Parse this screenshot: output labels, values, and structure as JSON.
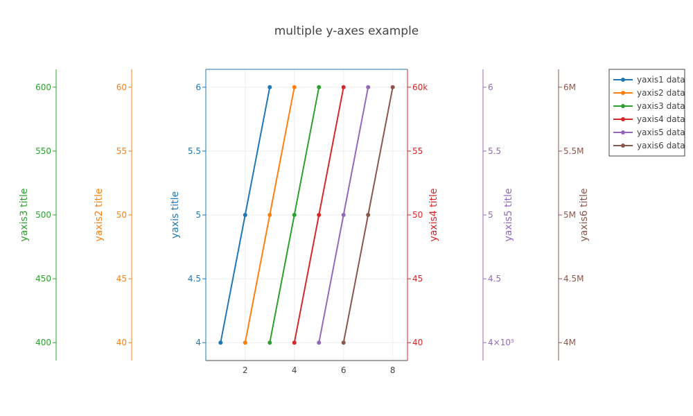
{
  "chart_data": {
    "type": "line",
    "title": "multiple y-axes example",
    "xaxis": {
      "range": [
        0.4,
        8.6
      ],
      "ticks": [
        2,
        4,
        6,
        8
      ],
      "tick_labels": [
        "2",
        "4",
        "6",
        "8"
      ],
      "grid": true
    },
    "yaxes": [
      {
        "id": "y1",
        "title": "yaxis title",
        "color": "#1f77b4",
        "range": [
          3.86,
          6.14
        ],
        "ticks": [
          4,
          4.5,
          5,
          5.5,
          6
        ],
        "tick_labels": [
          "4",
          "4.5",
          "5",
          "5.5",
          "6"
        ],
        "side": "left",
        "grid": true
      },
      {
        "id": "y2",
        "title": "yaxis2 title",
        "color": "#ff7f0e",
        "range": [
          38.6,
          61.4
        ],
        "ticks": [
          40,
          45,
          50,
          55,
          60
        ],
        "tick_labels": [
          "40",
          "45",
          "50",
          "55",
          "60"
        ],
        "side": "left"
      },
      {
        "id": "y3",
        "title": "yaxis3 title",
        "color": "#2ca02c",
        "range": [
          386,
          614
        ],
        "ticks": [
          400,
          450,
          500,
          550,
          600
        ],
        "tick_labels": [
          "400",
          "450",
          "500",
          "550",
          "600"
        ],
        "side": "left"
      },
      {
        "id": "y4",
        "title": "yaxis4 title",
        "color": "#d62728",
        "range": [
          38600,
          61400
        ],
        "ticks": [
          40000,
          45000,
          50000,
          55000,
          60000
        ],
        "tick_labels": [
          "40",
          "45",
          "50",
          "55",
          "60k"
        ],
        "side": "right"
      },
      {
        "id": "y5",
        "title": "yaxis5 title",
        "color": "#9467bd",
        "range": [
          386000,
          614000
        ],
        "ticks": [
          400000,
          450000,
          500000,
          550000,
          600000
        ],
        "tick_labels": [
          "4×10⁵",
          "4.5",
          "5",
          "5.5",
          "6"
        ],
        "side": "right"
      },
      {
        "id": "y6",
        "title": "yaxis6 title",
        "color": "#8c564b",
        "range": [
          3860000,
          6140000
        ],
        "ticks": [
          4000000,
          4500000,
          5000000,
          5500000,
          6000000
        ],
        "tick_labels": [
          "4M",
          "4.5M",
          "5M",
          "5.5M",
          "6M"
        ],
        "side": "right"
      }
    ],
    "series": [
      {
        "name": "yaxis1 data",
        "yaxis": "y1",
        "color": "#1f77b4",
        "x": [
          1,
          2,
          3
        ],
        "y": [
          4,
          5,
          6
        ]
      },
      {
        "name": "yaxis2 data",
        "yaxis": "y2",
        "color": "#ff7f0e",
        "x": [
          2,
          3,
          4
        ],
        "y": [
          40,
          50,
          60
        ]
      },
      {
        "name": "yaxis3 data",
        "yaxis": "y3",
        "color": "#2ca02c",
        "x": [
          3,
          4,
          5
        ],
        "y": [
          400,
          500,
          600
        ]
      },
      {
        "name": "yaxis4 data",
        "yaxis": "y4",
        "color": "#d62728",
        "x": [
          4,
          5,
          6
        ],
        "y": [
          40000,
          50000,
          60000
        ]
      },
      {
        "name": "yaxis5 data",
        "yaxis": "y5",
        "color": "#9467bd",
        "x": [
          5,
          6,
          7
        ],
        "y": [
          400000,
          500000,
          600000
        ]
      },
      {
        "name": "yaxis6 data",
        "yaxis": "y6",
        "color": "#8c564b",
        "x": [
          6,
          7,
          8
        ],
        "y": [
          4000000,
          5000000,
          6000000
        ]
      }
    ],
    "legend": {
      "position": "top-right"
    }
  }
}
